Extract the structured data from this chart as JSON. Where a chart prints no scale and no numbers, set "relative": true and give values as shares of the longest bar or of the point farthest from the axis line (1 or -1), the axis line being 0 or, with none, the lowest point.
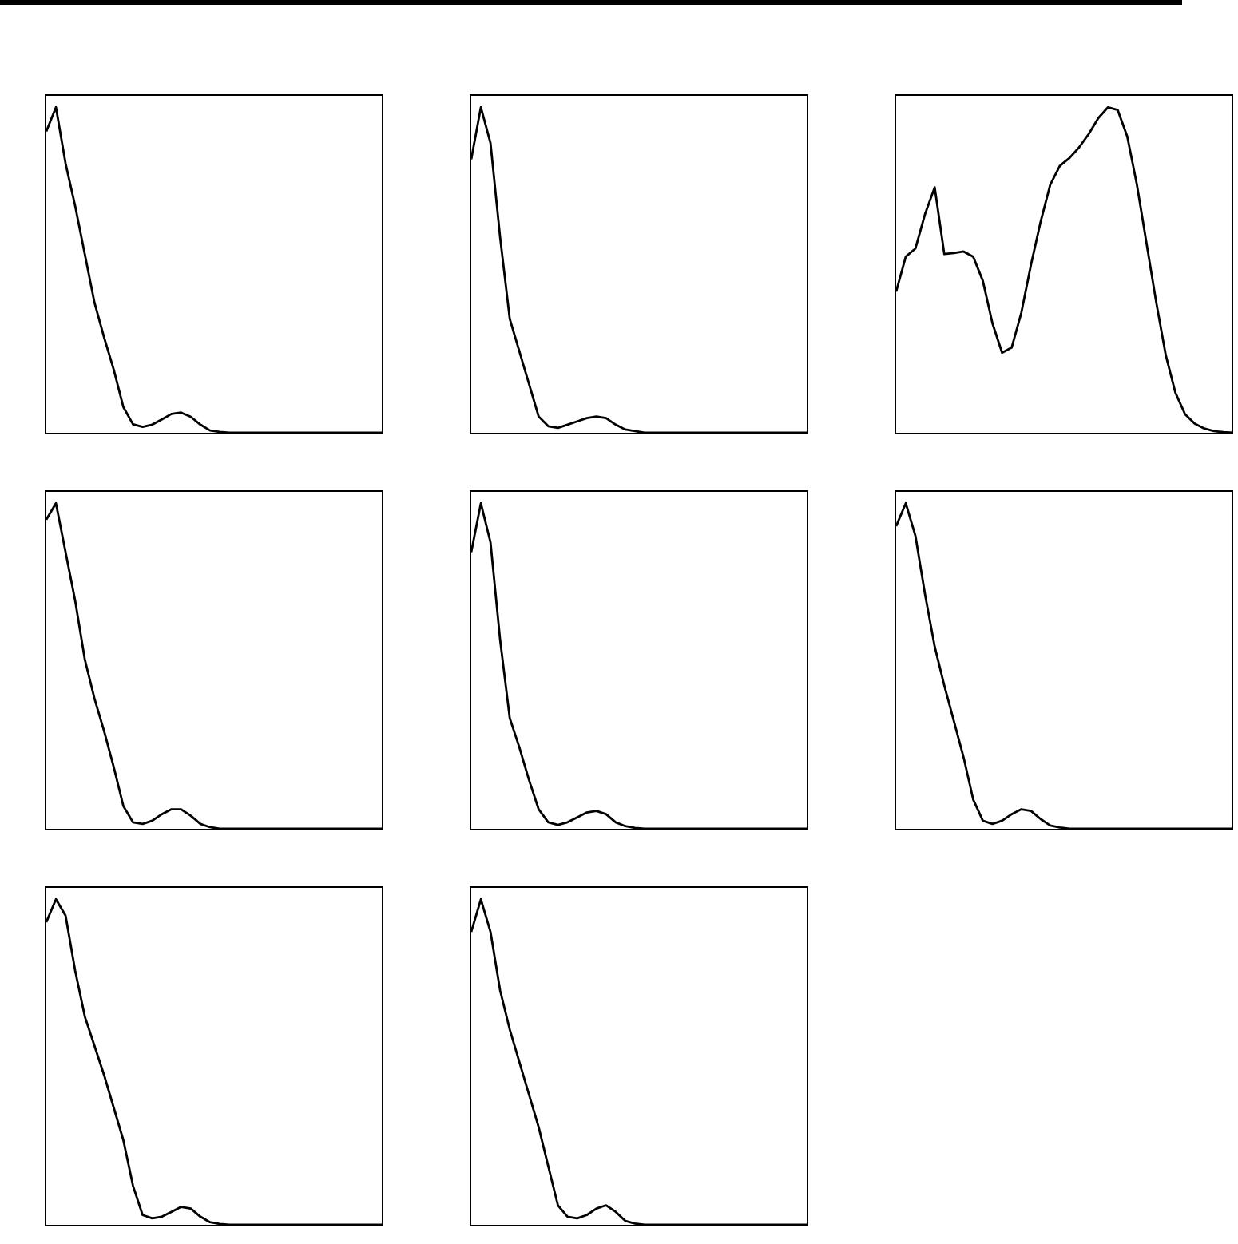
{
  "chart_data": [
    {
      "type": "line",
      "relative": true,
      "categories": [
        null,
        null,
        null,
        null,
        null,
        null,
        null,
        null,
        null,
        null,
        null,
        null,
        null,
        null,
        null,
        null,
        null,
        null,
        null,
        null,
        null,
        null,
        null,
        null,
        null,
        null,
        null,
        null,
        null,
        null,
        null,
        null,
        null,
        null,
        null,
        null
      ],
      "series": [
        {
          "color": "#000000",
          "values": [
            0.926,
            1.0,
            0.827,
            0.696,
            0.548,
            0.4,
            0.293,
            0.194,
            0.079,
            0.026,
            0.018,
            0.025,
            0.041,
            0.058,
            0.062,
            0.049,
            0.025,
            0.007,
            0.003,
            0,
            0,
            0,
            0,
            0,
            0,
            0,
            0,
            0,
            0,
            0,
            0,
            0,
            0,
            0,
            0,
            0
          ]
        }
      ]
    },
    {
      "type": "line",
      "relative": true,
      "categories": [
        null,
        null,
        null,
        null,
        null,
        null,
        null,
        null,
        null,
        null,
        null,
        null,
        null,
        null,
        null,
        null,
        null,
        null,
        null,
        null,
        null,
        null,
        null,
        null,
        null,
        null,
        null,
        null,
        null,
        null,
        null,
        null,
        null,
        null,
        null,
        null
      ],
      "series": [
        {
          "color": "#000000",
          "values": [
            0.84,
            1.0,
            0.89,
            0.6,
            0.35,
            0.25,
            0.15,
            0.05,
            0.02,
            0.015,
            0.025,
            0.035,
            0.045,
            0.05,
            0.045,
            0.025,
            0.01,
            0.005,
            0,
            0,
            0,
            0,
            0,
            0,
            0,
            0,
            0,
            0,
            0,
            0,
            0,
            0,
            0,
            0,
            0,
            0
          ]
        }
      ]
    },
    {
      "type": "line",
      "relative": true,
      "categories": [
        null,
        null,
        null,
        null,
        null,
        null,
        null,
        null,
        null,
        null,
        null,
        null,
        null,
        null,
        null,
        null,
        null,
        null,
        null,
        null,
        null,
        null,
        null,
        null,
        null,
        null,
        null,
        null,
        null,
        null,
        null,
        null,
        null,
        null,
        null,
        null
      ],
      "series": [
        {
          "color": "#000000",
          "values": [
            0.434,
            0.541,
            0.566,
            0.672,
            0.754,
            0.549,
            0.552,
            0.557,
            0.541,
            0.467,
            0.336,
            0.246,
            0.262,
            0.369,
            0.516,
            0.648,
            0.762,
            0.82,
            0.844,
            0.877,
            0.918,
            0.967,
            1.0,
            0.992,
            0.91,
            0.762,
            0.582,
            0.402,
            0.238,
            0.123,
            0.057,
            0.028,
            0.013,
            0.005,
            0.002,
            0
          ]
        }
      ]
    },
    {
      "type": "line",
      "relative": true,
      "categories": [
        null,
        null,
        null,
        null,
        null,
        null,
        null,
        null,
        null,
        null,
        null,
        null,
        null,
        null,
        null,
        null,
        null,
        null,
        null,
        null,
        null,
        null,
        null,
        null,
        null,
        null,
        null,
        null,
        null,
        null,
        null,
        null,
        null,
        null,
        null,
        null
      ],
      "series": [
        {
          "color": "#000000",
          "values": [
            0.95,
            1.0,
            0.85,
            0.7,
            0.52,
            0.4,
            0.3,
            0.19,
            0.07,
            0.02,
            0.015,
            0.025,
            0.045,
            0.06,
            0.06,
            0.04,
            0.015,
            0.005,
            0,
            0,
            0,
            0,
            0,
            0,
            0,
            0,
            0,
            0,
            0,
            0,
            0,
            0,
            0,
            0,
            0,
            0
          ]
        }
      ]
    },
    {
      "type": "line",
      "relative": true,
      "categories": [
        null,
        null,
        null,
        null,
        null,
        null,
        null,
        null,
        null,
        null,
        null,
        null,
        null,
        null,
        null,
        null,
        null,
        null,
        null,
        null,
        null,
        null,
        null,
        null,
        null,
        null,
        null,
        null,
        null,
        null,
        null,
        null,
        null,
        null,
        null,
        null
      ],
      "series": [
        {
          "color": "#000000",
          "values": [
            0.85,
            1.0,
            0.88,
            0.58,
            0.34,
            0.25,
            0.15,
            0.06,
            0.02,
            0.012,
            0.02,
            0.035,
            0.05,
            0.055,
            0.045,
            0.02,
            0.008,
            0.003,
            0,
            0,
            0,
            0,
            0,
            0,
            0,
            0,
            0,
            0,
            0,
            0,
            0,
            0,
            0,
            0,
            0,
            0
          ]
        }
      ]
    },
    {
      "type": "line",
      "relative": true,
      "categories": [
        null,
        null,
        null,
        null,
        null,
        null,
        null,
        null,
        null,
        null,
        null,
        null,
        null,
        null,
        null,
        null,
        null,
        null,
        null,
        null,
        null,
        null,
        null,
        null,
        null,
        null,
        null,
        null,
        null,
        null,
        null,
        null,
        null,
        null,
        null,
        null
      ],
      "series": [
        {
          "color": "#000000",
          "values": [
            0.93,
            1.0,
            0.9,
            0.72,
            0.56,
            0.44,
            0.33,
            0.22,
            0.09,
            0.025,
            0.015,
            0.025,
            0.045,
            0.06,
            0.055,
            0.03,
            0.01,
            0.004,
            0,
            0,
            0,
            0,
            0,
            0,
            0,
            0,
            0,
            0,
            0,
            0,
            0,
            0,
            0,
            0,
            0,
            0
          ]
        }
      ]
    },
    {
      "type": "line",
      "relative": true,
      "categories": [
        null,
        null,
        null,
        null,
        null,
        null,
        null,
        null,
        null,
        null,
        null,
        null,
        null,
        null,
        null,
        null,
        null,
        null,
        null,
        null,
        null,
        null,
        null,
        null,
        null,
        null,
        null,
        null,
        null,
        null,
        null,
        null,
        null,
        null,
        null,
        null
      ],
      "series": [
        {
          "color": "#000000",
          "values": [
            0.93,
            1.0,
            0.95,
            0.78,
            0.64,
            0.55,
            0.46,
            0.36,
            0.26,
            0.12,
            0.03,
            0.02,
            0.025,
            0.04,
            0.055,
            0.05,
            0.025,
            0.008,
            0.003,
            0,
            0,
            0,
            0,
            0,
            0,
            0,
            0,
            0,
            0,
            0,
            0,
            0,
            0,
            0,
            0,
            0
          ]
        }
      ]
    },
    {
      "type": "line",
      "relative": true,
      "categories": [
        null,
        null,
        null,
        null,
        null,
        null,
        null,
        null,
        null,
        null,
        null,
        null,
        null,
        null,
        null,
        null,
        null,
        null,
        null,
        null,
        null,
        null,
        null,
        null,
        null,
        null,
        null,
        null,
        null,
        null,
        null,
        null,
        null,
        null,
        null,
        null
      ],
      "series": [
        {
          "color": "#000000",
          "values": [
            0.9,
            1.0,
            0.9,
            0.72,
            0.6,
            0.5,
            0.4,
            0.3,
            0.18,
            0.06,
            0.025,
            0.02,
            0.03,
            0.05,
            0.06,
            0.04,
            0.012,
            0.004,
            0,
            0,
            0,
            0,
            0,
            0,
            0,
            0,
            0,
            0,
            0,
            0,
            0,
            0,
            0,
            0,
            0,
            0
          ]
        }
      ]
    }
  ]
}
